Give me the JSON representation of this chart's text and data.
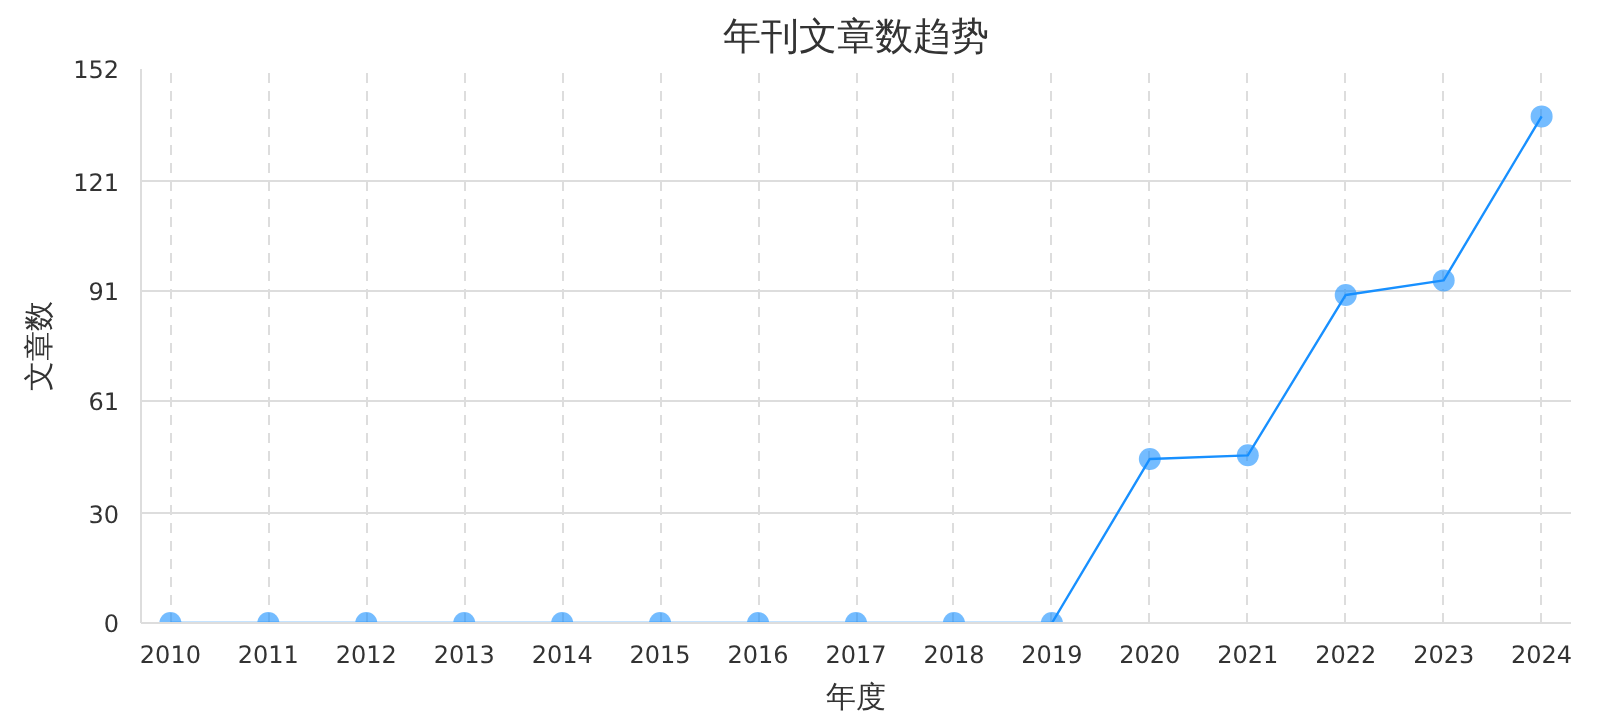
{
  "chart_data": {
    "type": "line",
    "title": "年刊文章数趋势",
    "xlabel": "年度",
    "ylabel": "文章数",
    "categories": [
      "2010",
      "2011",
      "2012",
      "2013",
      "2014",
      "2015",
      "2016",
      "2017",
      "2018",
      "2019",
      "2020",
      "2021",
      "2022",
      "2023",
      "2024"
    ],
    "series": [
      {
        "color": "#1890ff",
        "values": [
          0,
          0,
          0,
          0,
          0,
          0,
          0,
          0,
          0,
          0,
          45,
          46,
          90,
          94,
          139
        ]
      }
    ],
    "ylim": [
      0,
      152
    ],
    "yticks": [
      0,
      30,
      61,
      91,
      121,
      152
    ],
    "grid": true,
    "marker": "circle",
    "line_style": "solid"
  }
}
